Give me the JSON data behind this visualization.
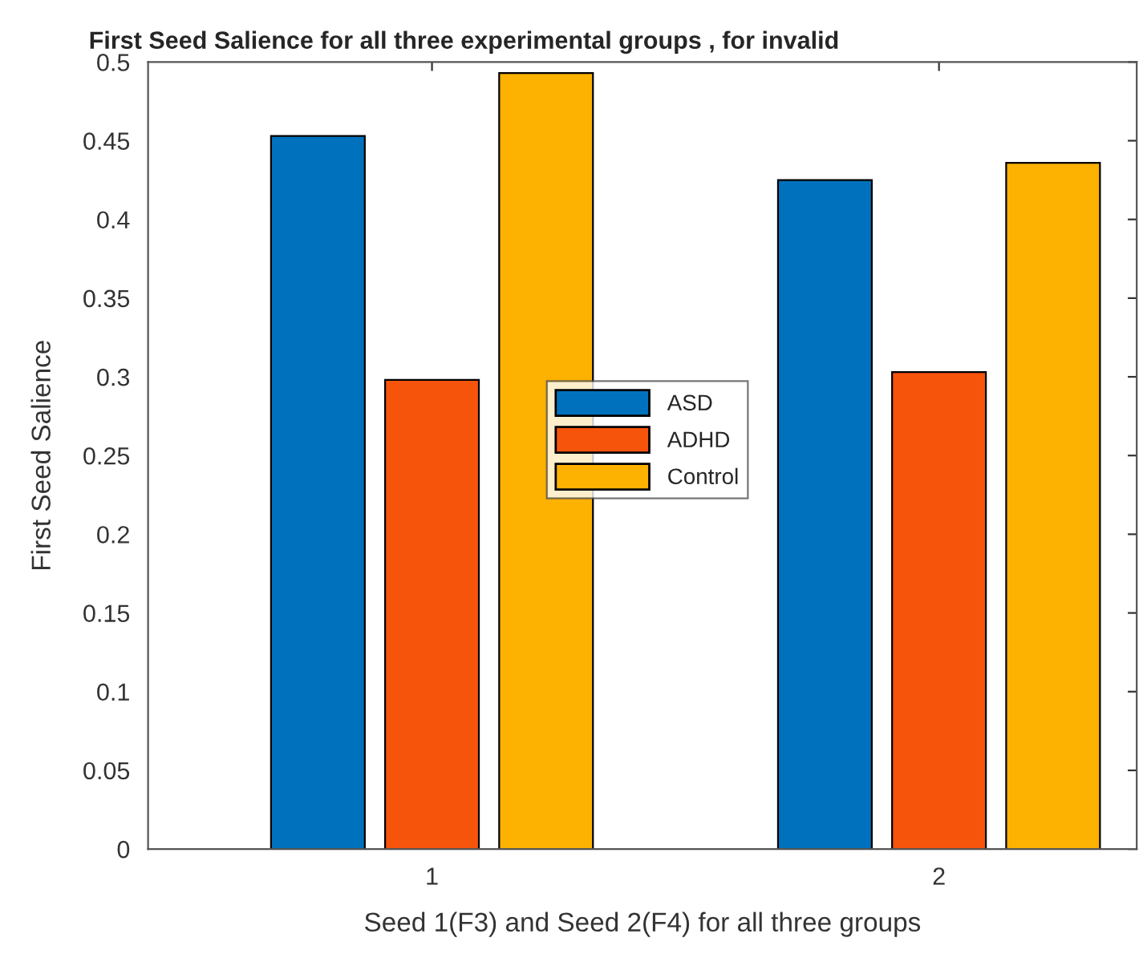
{
  "chart_data": {
    "type": "bar",
    "title": "First Seed Salience for all three experimental groups , for invalid",
    "xlabel": "Seed 1(F3) and Seed 2(F4) for all three groups",
    "ylabel": "First Seed Salience",
    "categories": [
      "1",
      "2"
    ],
    "series": [
      {
        "name": "ASD",
        "color": "#0072bd",
        "values": [
          0.453,
          0.425
        ]
      },
      {
        "name": "ADHD",
        "color": "#f7540b",
        "values": [
          0.298,
          0.303
        ]
      },
      {
        "name": "Control",
        "color": "#fdb100",
        "values": [
          0.493,
          0.436
        ]
      }
    ],
    "ylim": [
      0,
      0.5
    ],
    "yticks": [
      0,
      0.05,
      0.1,
      0.15,
      0.2,
      0.25,
      0.3,
      0.35,
      0.4,
      0.45,
      0.5
    ],
    "grid": false,
    "legend": "center"
  }
}
